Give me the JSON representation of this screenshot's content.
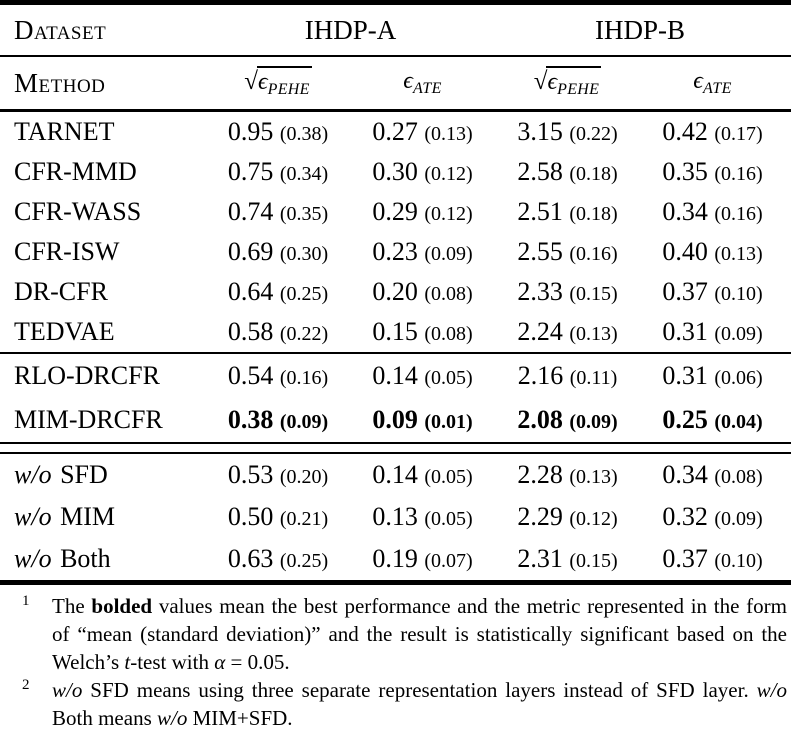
{
  "colors": {
    "text": "#000000",
    "background": "#ffffff"
  },
  "table": {
    "header": {
      "dataset_label": "Dataset",
      "method_label": "Method",
      "groups": [
        {
          "label": "IHDP-A"
        },
        {
          "label": "IHDP-B"
        }
      ],
      "metrics": [
        {
          "radical": true,
          "symbol": "ϵ",
          "subscript": "PEHE"
        },
        {
          "radical": false,
          "symbol": "ϵ",
          "subscript": "ATE"
        },
        {
          "radical": true,
          "symbol": "ϵ",
          "subscript": "PEHE"
        },
        {
          "radical": false,
          "symbol": "ϵ",
          "subscript": "ATE"
        }
      ]
    },
    "sections": [
      {
        "name": "baselines",
        "rows": [
          {
            "method": "TARNET",
            "bold": false,
            "values": [
              [
                "0.95",
                "0.38"
              ],
              [
                "0.27",
                "0.13"
              ],
              [
                "3.15",
                "0.22"
              ],
              [
                "0.42",
                "0.17"
              ]
            ]
          },
          {
            "method": "CFR-MMD",
            "bold": false,
            "values": [
              [
                "0.75",
                "0.34"
              ],
              [
                "0.30",
                "0.12"
              ],
              [
                "2.58",
                "0.18"
              ],
              [
                "0.35",
                "0.16"
              ]
            ]
          },
          {
            "method": "CFR-WASS",
            "bold": false,
            "values": [
              [
                "0.74",
                "0.35"
              ],
              [
                "0.29",
                "0.12"
              ],
              [
                "2.51",
                "0.18"
              ],
              [
                "0.34",
                "0.16"
              ]
            ]
          },
          {
            "method": "CFR-ISW",
            "bold": false,
            "values": [
              [
                "0.69",
                "0.30"
              ],
              [
                "0.23",
                "0.09"
              ],
              [
                "2.55",
                "0.16"
              ],
              [
                "0.40",
                "0.13"
              ]
            ]
          },
          {
            "method": "DR-CFR",
            "bold": false,
            "values": [
              [
                "0.64",
                "0.25"
              ],
              [
                "0.20",
                "0.08"
              ],
              [
                "2.33",
                "0.15"
              ],
              [
                "0.37",
                "0.10"
              ]
            ]
          },
          {
            "method": "TEDVAE",
            "bold": false,
            "values": [
              [
                "0.58",
                "0.22"
              ],
              [
                "0.15",
                "0.08"
              ],
              [
                "2.24",
                "0.13"
              ],
              [
                "0.31",
                "0.09"
              ]
            ]
          }
        ]
      },
      {
        "name": "proposed",
        "rows": [
          {
            "method": "RLO-DRCFR",
            "bold": false,
            "values": [
              [
                "0.54",
                "0.16"
              ],
              [
                "0.14",
                "0.05"
              ],
              [
                "2.16",
                "0.11"
              ],
              [
                "0.31",
                "0.06"
              ]
            ]
          },
          {
            "method": "MIM-DRCFR",
            "bold": true,
            "values": [
              [
                "0.38",
                "0.09"
              ],
              [
                "0.09",
                "0.01"
              ],
              [
                "2.08",
                "0.09"
              ],
              [
                "0.25",
                "0.04"
              ]
            ]
          }
        ]
      },
      {
        "name": "ablation",
        "rows": [
          {
            "method": "SFD",
            "method_prefix": "w/o",
            "bold": false,
            "values": [
              [
                "0.53",
                "0.20"
              ],
              [
                "0.14",
                "0.05"
              ],
              [
                "2.28",
                "0.13"
              ],
              [
                "0.34",
                "0.08"
              ]
            ]
          },
          {
            "method": "MIM",
            "method_prefix": "w/o",
            "bold": false,
            "values": [
              [
                "0.50",
                "0.21"
              ],
              [
                "0.13",
                "0.05"
              ],
              [
                "2.29",
                "0.12"
              ],
              [
                "0.32",
                "0.09"
              ]
            ]
          },
          {
            "method": "Both",
            "method_prefix": "w/o",
            "bold": false,
            "values": [
              [
                "0.63",
                "0.25"
              ],
              [
                "0.19",
                "0.07"
              ],
              [
                "2.31",
                "0.15"
              ],
              [
                "0.37",
                "0.10"
              ]
            ]
          }
        ]
      }
    ]
  },
  "footnotes": [
    {
      "marker": "1",
      "segments": [
        {
          "text": "The "
        },
        {
          "text": "bolded",
          "bold": true
        },
        {
          "text": " values mean the best performance and the metric represented in the form of “mean (standard deviation)” and the result is statistically significant based on the Welch’s "
        },
        {
          "text": "t",
          "italic": true
        },
        {
          "text": "-test with "
        },
        {
          "text": "α",
          "italic": true
        },
        {
          "text": " = 0.05."
        }
      ]
    },
    {
      "marker": "2",
      "segments": [
        {
          "text": "w/o",
          "italic": true
        },
        {
          "text": " SFD means using three separate representation layers instead of SFD layer. "
        },
        {
          "text": "w/o",
          "italic": true
        },
        {
          "text": " Both means "
        },
        {
          "text": "w/o",
          "italic": true
        },
        {
          "text": " MIM+SFD."
        }
      ]
    }
  ]
}
